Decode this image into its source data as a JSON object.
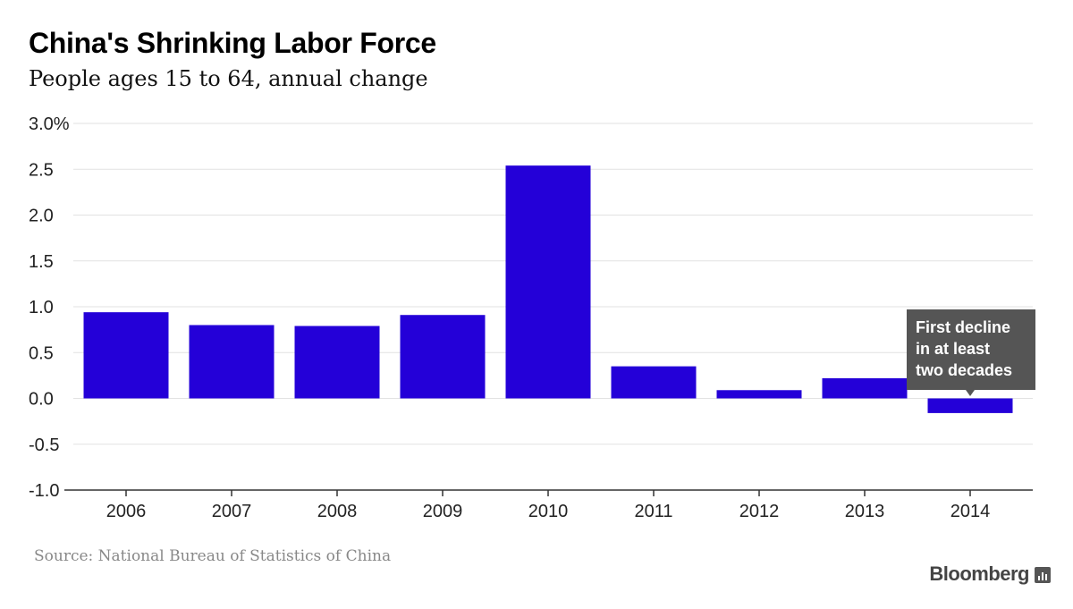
{
  "chart_data": {
    "type": "bar",
    "title": "China's Shrinking Labor Force",
    "subtitle": "People ages 15 to 64, annual change",
    "categories": [
      "2006",
      "2007",
      "2008",
      "2009",
      "2010",
      "2011",
      "2012",
      "2013",
      "2014"
    ],
    "values": [
      0.94,
      0.8,
      0.79,
      0.91,
      2.54,
      0.35,
      0.09,
      0.22,
      -0.16
    ],
    "ylim": [
      -1.0,
      3.0
    ],
    "yticks": [
      3.0,
      2.5,
      2.0,
      1.5,
      1.0,
      0.5,
      0.0,
      -0.5,
      -1.0
    ],
    "ytick_labels": [
      "3.0%",
      "2.5",
      "2.0",
      "1.5",
      "1.0",
      "0.5",
      "0.0",
      "-0.5",
      "-1.0"
    ],
    "xlabel": "",
    "ylabel": "",
    "grid": true,
    "bar_color": "#2400d8",
    "annotation": {
      "category": "2014",
      "lines": [
        "First decline",
        "in at least",
        "two decades"
      ]
    }
  },
  "source": "Source: National Bureau of Statistics of China",
  "brand": "Bloomberg"
}
